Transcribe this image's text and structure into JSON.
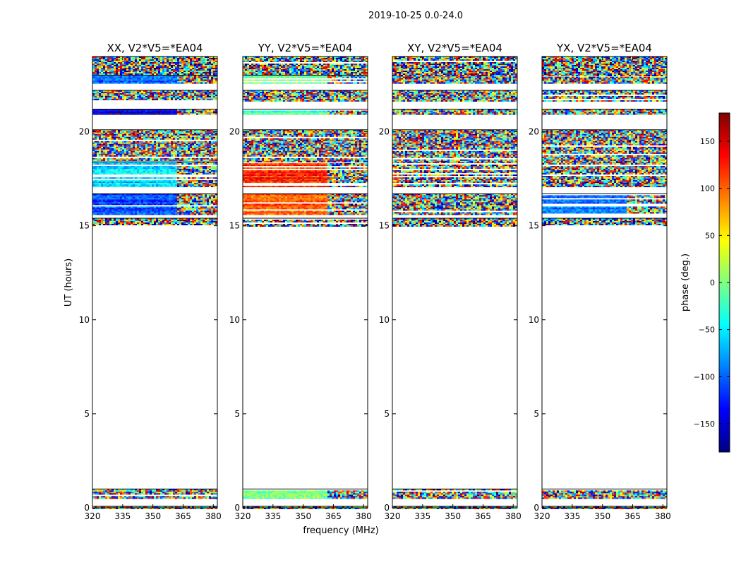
{
  "figure": {
    "suptitle": "2019-10-25 0.0-24.0",
    "xlabel": "frequency (MHz)",
    "ylabel": "UT (hours)"
  },
  "colorbar": {
    "label": "phase (deg.)",
    "range": [
      -180,
      180
    ],
    "ticks": [
      -150,
      -100,
      -50,
      0,
      50,
      100,
      150
    ],
    "tick_labels": [
      "−150",
      "−100",
      "−50",
      "0",
      "50",
      "100",
      "150"
    ],
    "colormap": "jet",
    "colors": [
      "#00007f",
      "#0000ff",
      "#007fff",
      "#00ffff",
      "#7fff7f",
      "#ffff00",
      "#ff7f00",
      "#ff0000",
      "#7f0000"
    ]
  },
  "chart_data": [
    {
      "type": "heatmap",
      "title": "XX, V2*V5=*EA04",
      "xlim": [
        320,
        382
      ],
      "ylim": [
        0,
        24
      ],
      "xticks": [
        320,
        335,
        350,
        365,
        380
      ],
      "yticks": [
        0,
        5,
        10,
        15,
        20
      ],
      "coherent_until_mhz": 361,
      "bands": [
        {
          "y0": 0.0,
          "y1": 0.08,
          "phase": null
        },
        {
          "y0": 0.5,
          "y1": 1.0,
          "phase": null
        },
        {
          "y0": 15.0,
          "y1": 15.4,
          "phase": null
        },
        {
          "y0": 15.6,
          "y1": 16.7,
          "phase": -110
        },
        {
          "y0": 17.1,
          "y1": 18.4,
          "phase": -60
        },
        {
          "y0": 18.4,
          "y1": 20.1,
          "phase": null
        },
        {
          "y0": 20.9,
          "y1": 21.2,
          "phase": -140
        },
        {
          "y0": 21.6,
          "y1": 22.2,
          "phase": null
        },
        {
          "y0": 22.6,
          "y1": 23.0,
          "phase": -100
        },
        {
          "y0": 23.0,
          "y1": 24.0,
          "phase": null
        }
      ]
    },
    {
      "type": "heatmap",
      "title": "YY, V2*V5=*EA04",
      "xlim": [
        320,
        382
      ],
      "ylim": [
        0,
        24
      ],
      "xticks": [
        320,
        335,
        350,
        365,
        380
      ],
      "yticks": [
        0,
        5,
        10,
        15,
        20
      ],
      "coherent_until_mhz": 361,
      "bands": [
        {
          "y0": 0.0,
          "y1": 0.08,
          "phase": null
        },
        {
          "y0": 0.5,
          "y1": 1.0,
          "phase": 10
        },
        {
          "y0": 15.0,
          "y1": 15.4,
          "phase": null
        },
        {
          "y0": 15.6,
          "y1": 16.7,
          "phase": 100
        },
        {
          "y0": 17.1,
          "y1": 18.4,
          "phase": 120
        },
        {
          "y0": 18.4,
          "y1": 20.1,
          "phase": null
        },
        {
          "y0": 20.9,
          "y1": 21.2,
          "phase": -20
        },
        {
          "y0": 21.6,
          "y1": 22.2,
          "phase": null
        },
        {
          "y0": 22.6,
          "y1": 23.0,
          "phase": -10
        },
        {
          "y0": 23.0,
          "y1": 24.0,
          "phase": null
        }
      ]
    },
    {
      "type": "heatmap",
      "title": "XY, V2*V5=*EA04",
      "xlim": [
        320,
        382
      ],
      "ylim": [
        0,
        24
      ],
      "xticks": [
        320,
        335,
        350,
        365,
        380
      ],
      "yticks": [
        0,
        5,
        10,
        15,
        20
      ],
      "coherent_until_mhz": 361,
      "bands": [
        {
          "y0": 0.0,
          "y1": 0.08,
          "phase": null
        },
        {
          "y0": 0.5,
          "y1": 1.0,
          "phase": null
        },
        {
          "y0": 15.0,
          "y1": 15.4,
          "phase": null
        },
        {
          "y0": 15.6,
          "y1": 16.7,
          "phase": null
        },
        {
          "y0": 17.1,
          "y1": 18.4,
          "phase": null
        },
        {
          "y0": 18.4,
          "y1": 20.1,
          "phase": null
        },
        {
          "y0": 20.9,
          "y1": 21.2,
          "phase": null
        },
        {
          "y0": 21.6,
          "y1": 22.2,
          "phase": null
        },
        {
          "y0": 22.6,
          "y1": 23.0,
          "phase": null
        },
        {
          "y0": 23.0,
          "y1": 24.0,
          "phase": null
        }
      ]
    },
    {
      "type": "heatmap",
      "title": "YX, V2*V5=*EA04",
      "xlim": [
        320,
        382
      ],
      "ylim": [
        0,
        24
      ],
      "xticks": [
        320,
        335,
        350,
        365,
        380
      ],
      "yticks": [
        0,
        5,
        10,
        15,
        20
      ],
      "coherent_until_mhz": 361,
      "bands": [
        {
          "y0": 0.0,
          "y1": 0.08,
          "phase": null
        },
        {
          "y0": 0.5,
          "y1": 1.0,
          "phase": null
        },
        {
          "y0": 15.0,
          "y1": 15.4,
          "phase": null
        },
        {
          "y0": 15.6,
          "y1": 16.7,
          "phase": -100
        },
        {
          "y0": 17.1,
          "y1": 18.4,
          "phase": null
        },
        {
          "y0": 18.4,
          "y1": 20.1,
          "phase": null
        },
        {
          "y0": 20.9,
          "y1": 21.2,
          "phase": null
        },
        {
          "y0": 21.6,
          "y1": 22.2,
          "phase": null
        },
        {
          "y0": 22.6,
          "y1": 23.0,
          "phase": null
        },
        {
          "y0": 23.0,
          "y1": 24.0,
          "phase": null
        }
      ]
    }
  ]
}
